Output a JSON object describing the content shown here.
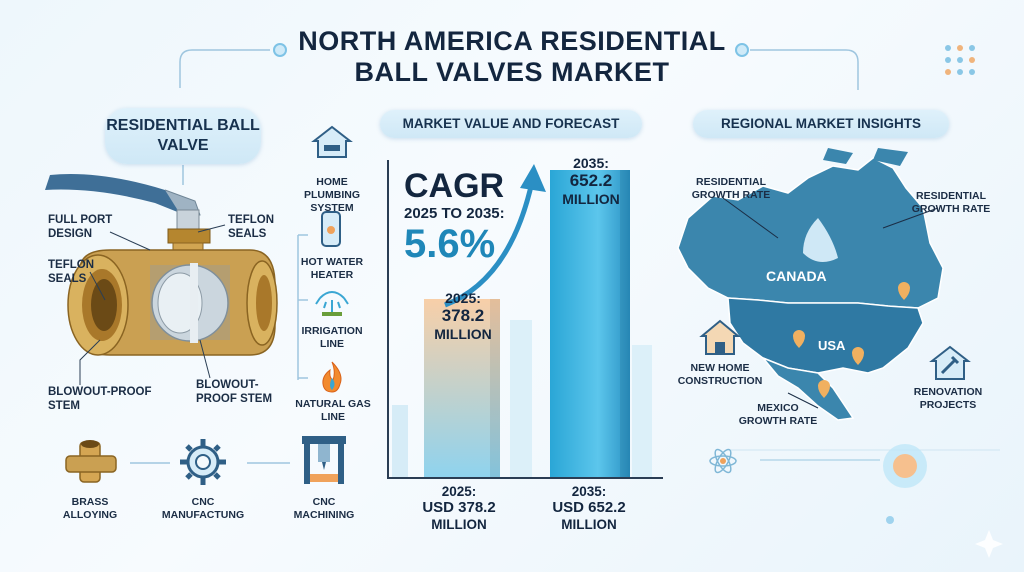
{
  "title": {
    "line1": "NORTH AMERICA RESIDENTIAL",
    "line2": "BALL VALVES MARKET"
  },
  "left_section": {
    "header": "RESIDENTIAL BALL VALVE",
    "callouts": [
      {
        "text": "FULL PORT DESIGN"
      },
      {
        "text": "TEFLON SEALS"
      },
      {
        "text": "TEFLON SEALS"
      },
      {
        "text": "BLOWOUT-PROOF STEM"
      },
      {
        "text": "BLOWOUT- PROOF STEM"
      }
    ],
    "applications": [
      {
        "label": "HOME PLUMBING SYSTEM",
        "icon": "house-faucet-icon"
      },
      {
        "label": "HOT WATER HEATER",
        "icon": "water-heater-icon"
      },
      {
        "label": "IRRIGATION LINE",
        "icon": "sprinkler-icon"
      },
      {
        "label": "NATURAL GAS LINE",
        "icon": "flame-icon"
      }
    ],
    "process": [
      {
        "label": "BRASS ALLOYING",
        "icon": "brass-fitting-icon"
      },
      {
        "label": "CNC MANUFACTUNG",
        "icon": "gear-icon"
      },
      {
        "label": "CNC MACHINING",
        "icon": "cnc-machine-icon"
      }
    ]
  },
  "market_section": {
    "header": "MARKET VALUE AND FORECAST",
    "cagr_label": "CAGR",
    "cagr_period": "2025 TO 2035:",
    "cagr_value": "5.6%",
    "bar_2025_label": [
      "2025:",
      "378.2",
      "MILLION"
    ],
    "bar_2035_label": [
      "2035:",
      "652.2",
      "MILLION"
    ],
    "bottom_2025": [
      "2025:",
      "USD 378.2",
      "MILLION"
    ],
    "bottom_2035": [
      "2035:",
      "USD 652.2",
      "MILLION"
    ],
    "colors": {
      "bar_2025_top": "#f8cfa8",
      "bar_2025_bottom": "#8fd3ee",
      "bar_2035": "#2aa6d6"
    }
  },
  "chart_data": {
    "type": "bar",
    "categories": [
      "2025",
      "2035"
    ],
    "values": [
      378.2,
      652.2
    ],
    "ylim": [
      0,
      700
    ]
  },
  "regional_section": {
    "header": "REGIONAL MARKET INSIGHTS",
    "labels": [
      {
        "text": "RESIDENTIAL GROWTH RATE"
      },
      {
        "text": "RESIDENTIAL GROWTH RATE"
      },
      {
        "text": "CANADA"
      },
      {
        "text": "USA"
      },
      {
        "text": "MEXICO GROWTH RATE"
      }
    ],
    "drivers": [
      {
        "label": "NEW HOME CONSTRUCTION",
        "icon": "house-icon"
      },
      {
        "label": "RENOVATION PROJECTS",
        "icon": "renovation-house-icon"
      }
    ],
    "colors": {
      "map": "#3b86ad",
      "map_dark": "#2c6f95"
    }
  }
}
